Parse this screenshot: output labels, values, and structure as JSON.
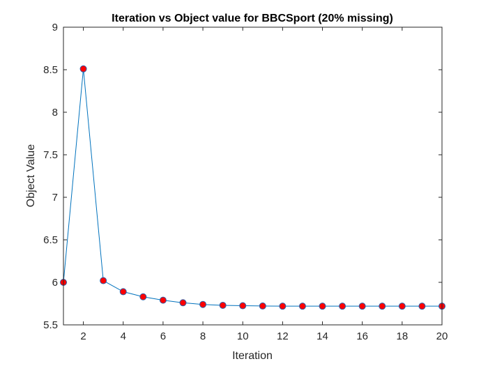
{
  "chart_data": {
    "type": "line",
    "title": "Iteration vs Object value for BBCSport (20% missing)",
    "xlabel": "Iteration",
    "ylabel": "Object Value",
    "xlim": [
      1,
      20
    ],
    "ylim": [
      5.5,
      9
    ],
    "x_ticks": [
      2,
      4,
      6,
      8,
      10,
      12,
      14,
      16,
      18,
      20
    ],
    "y_ticks": [
      5.5,
      6,
      6.5,
      7,
      7.5,
      8,
      8.5,
      9
    ],
    "x_tick_labels": [
      "2",
      "4",
      "6",
      "8",
      "10",
      "12",
      "14",
      "16",
      "18",
      "20"
    ],
    "y_tick_labels": [
      "5.5",
      "6",
      "6.5",
      "7",
      "7.5",
      "8",
      "8.5",
      "9"
    ],
    "grid": false,
    "series": [
      {
        "x": [
          1,
          2,
          3,
          4,
          5,
          6,
          7,
          8,
          9,
          10,
          11,
          12,
          13,
          14,
          15,
          16,
          17,
          18,
          19,
          20
        ],
        "y": [
          6.0,
          8.51,
          6.02,
          5.89,
          5.83,
          5.79,
          5.76,
          5.74,
          5.73,
          5.725,
          5.722,
          5.72,
          5.72,
          5.72,
          5.72,
          5.72,
          5.72,
          5.72,
          5.72,
          5.72
        ],
        "line_color": "#0072BD",
        "marker_face_color": "#FF0000",
        "marker_edge_color": "#2E5FA8"
      }
    ]
  }
}
